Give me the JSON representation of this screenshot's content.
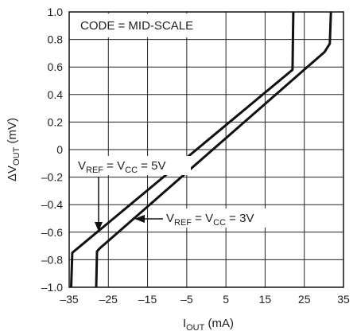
{
  "chart_data": {
    "type": "line",
    "annotation": "CODE = MID-SCALE",
    "xlabel": {
      "main": "I",
      "sub": "OUT",
      "rest": " (mA)"
    },
    "ylabel": {
      "main": "ΔV",
      "sub": "OUT",
      "rest": " (mV)"
    },
    "xlim": [
      -35,
      35
    ],
    "ylim": [
      -1.0,
      1.0
    ],
    "x_ticks": [
      "–35",
      "–25",
      "–15",
      "–5",
      "5",
      "15",
      "25",
      "35"
    ],
    "y_ticks": [
      "1.0",
      "0.8",
      "0.6",
      "0.4",
      "0.2",
      "0",
      "–0.2",
      "–0.4",
      "–0.6",
      "–0.8",
      "–1.0"
    ],
    "grid": true,
    "series": [
      {
        "name": "VREF = VCC = 5V",
        "label": {
          "p1": "V",
          "s1": "REF",
          "p2": " = V",
          "s2": "CC",
          "p3": " = 5V"
        },
        "points": [
          [
            -34.5,
            -1.0
          ],
          [
            -34.2,
            -0.75
          ],
          [
            -33.4,
            -0.73
          ],
          [
            22.0,
            0.58
          ],
          [
            22.2,
            1.0
          ]
        ]
      },
      {
        "name": "VREF = VCC = 3V",
        "label": {
          "p1": "V",
          "s1": "REF",
          "p2": " = V",
          "s2": "CC",
          "p3": " = 3V"
        },
        "points": [
          [
            -28.1,
            -1.0
          ],
          [
            -27.9,
            -0.74
          ],
          [
            -27.3,
            -0.72
          ],
          [
            30.2,
            0.71
          ],
          [
            31.5,
            0.77
          ],
          [
            31.8,
            1.0
          ]
        ]
      }
    ]
  }
}
